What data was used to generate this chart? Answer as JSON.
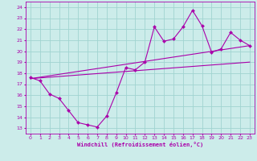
{
  "xlabel": "Windchill (Refroidissement éolien,°C)",
  "background_color": "#ccecea",
  "grid_color": "#a0d4d0",
  "line_color": "#aa00aa",
  "xlim": [
    -0.5,
    23.5
  ],
  "ylim": [
    12.5,
    24.5
  ],
  "xticks": [
    0,
    1,
    2,
    3,
    4,
    5,
    6,
    7,
    8,
    9,
    10,
    11,
    12,
    13,
    14,
    15,
    16,
    17,
    18,
    19,
    20,
    21,
    22,
    23
  ],
  "yticks": [
    13,
    14,
    15,
    16,
    17,
    18,
    19,
    20,
    21,
    22,
    23,
    24
  ],
  "line1_x": [
    0,
    1,
    2,
    3,
    4,
    5,
    6,
    7,
    8,
    9,
    10,
    11,
    12,
    13,
    14,
    15,
    16,
    17,
    18,
    19,
    20,
    21,
    22,
    23
  ],
  "line1_y": [
    17.6,
    17.3,
    16.1,
    15.7,
    14.6,
    13.5,
    13.3,
    13.1,
    14.1,
    16.2,
    18.5,
    18.3,
    19.0,
    22.2,
    20.9,
    21.1,
    22.2,
    23.7,
    22.3,
    19.9,
    20.2,
    21.7,
    21.0,
    20.5
  ],
  "line2_x": [
    0,
    23
  ],
  "line2_y": [
    17.5,
    20.5
  ],
  "line3_x": [
    0,
    23
  ],
  "line3_y": [
    17.5,
    19.0
  ]
}
